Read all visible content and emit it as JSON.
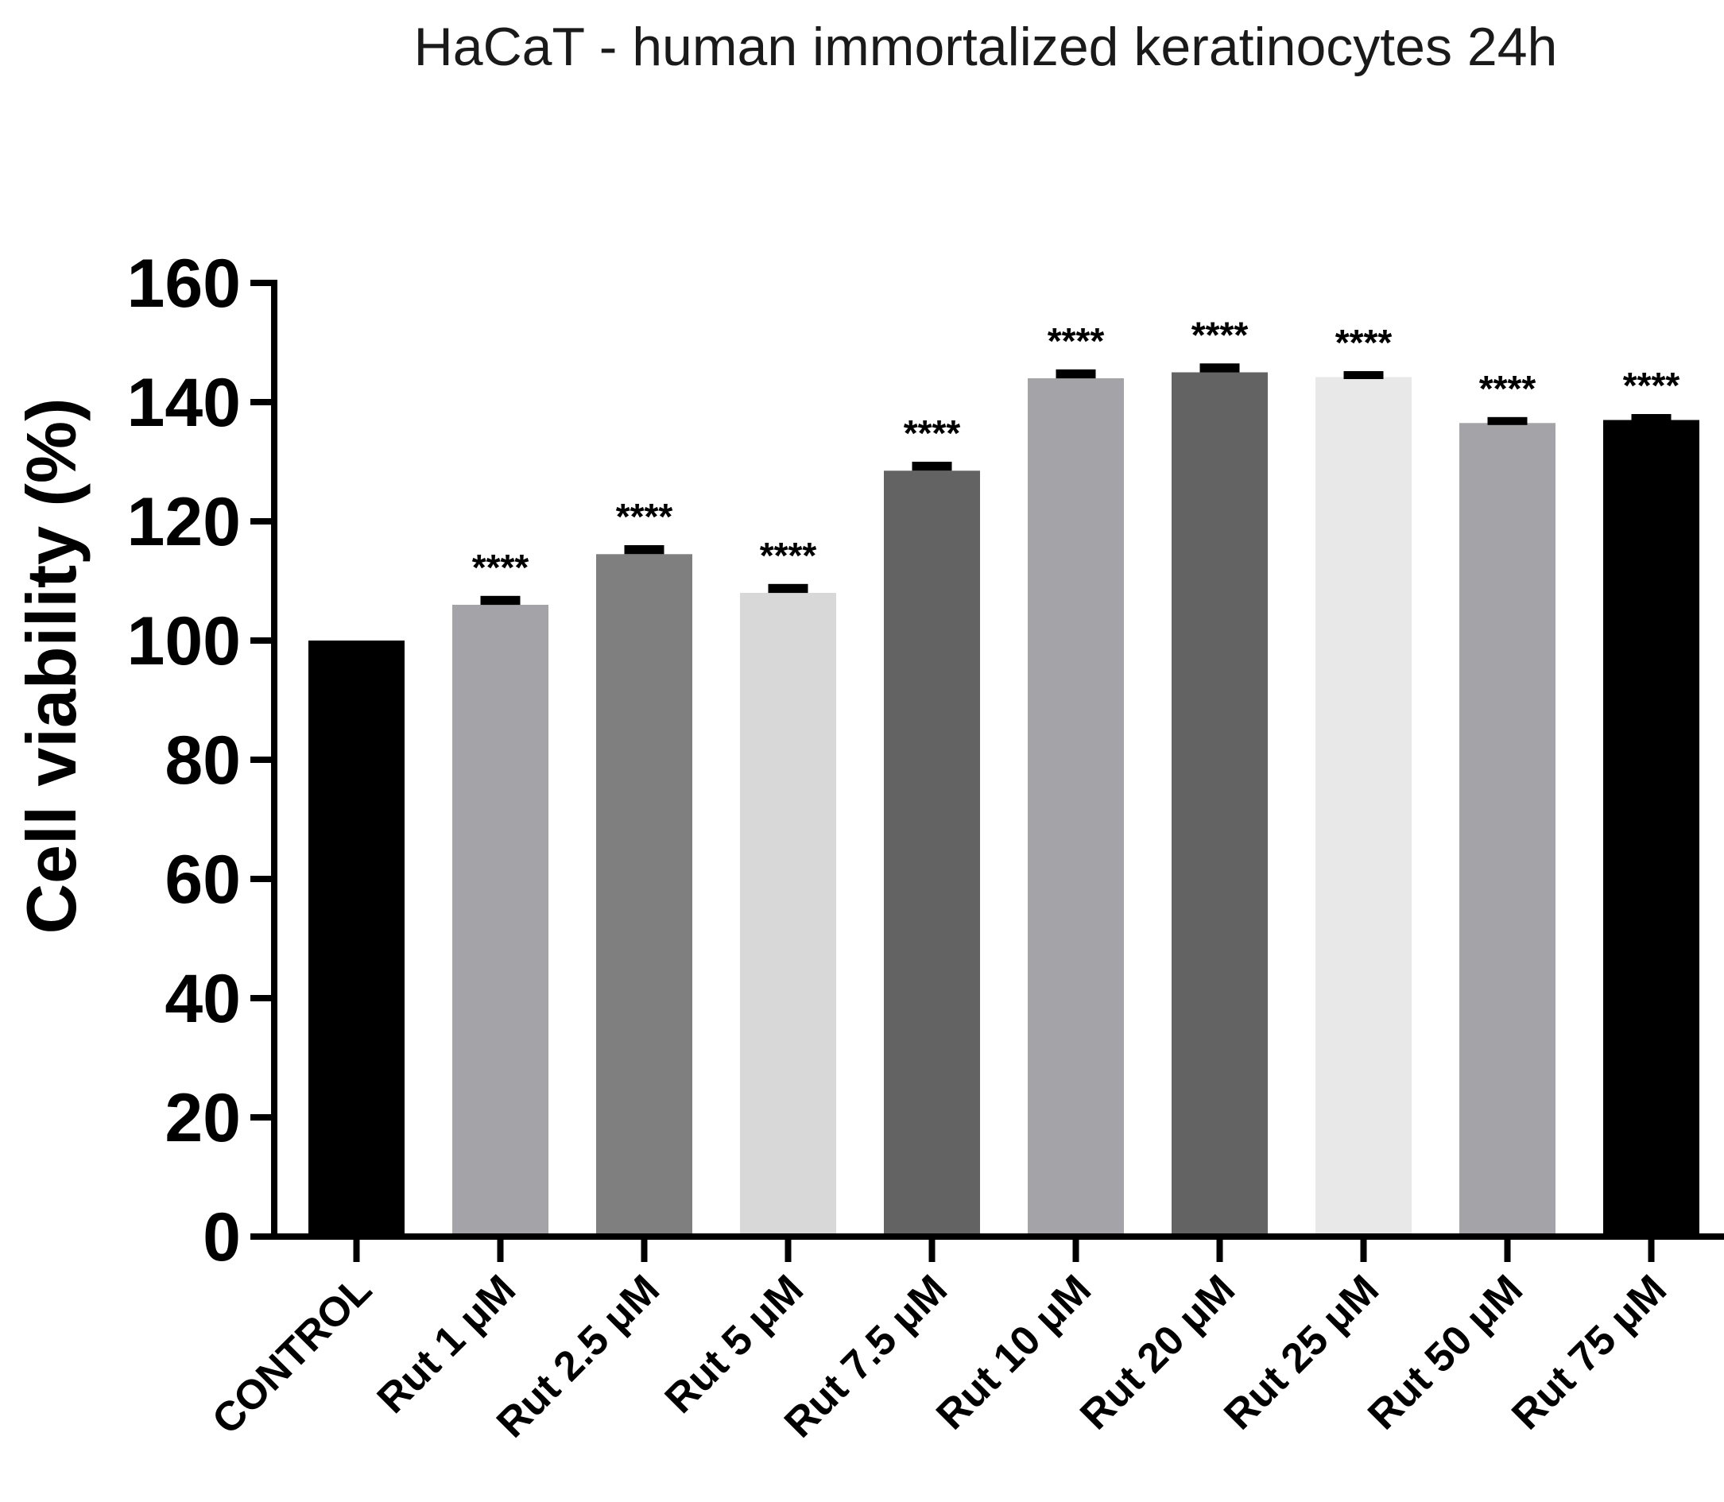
{
  "chart_data": {
    "type": "bar",
    "title": "HaCaT - human immortalized keratinocytes 24h",
    "xlabel": "",
    "ylabel": "Cell viability (%)",
    "ylim": [
      0,
      160
    ],
    "yticks": [
      0,
      20,
      40,
      60,
      80,
      100,
      120,
      140,
      160
    ],
    "grid": false,
    "categories": [
      "CONTROL",
      "Rut 1 μM",
      "Rut 2.5 μM",
      "Rut 5 μM",
      "Rut 7.5 μM",
      "Rut 10 μM",
      "Rut 20 μM",
      "Rut 25 μM",
      "Rut 50 μM",
      "Rut 75 μM"
    ],
    "values": [
      100,
      106,
      114.5,
      108,
      128.5,
      144,
      145,
      144.2,
      136.5,
      137
    ],
    "errors": [
      0,
      1.5,
      1.5,
      1.5,
      1.5,
      1.5,
      1.5,
      1,
      1,
      1
    ],
    "significance": [
      "",
      "****",
      "****",
      "****",
      "****",
      "****",
      "****",
      "****",
      "****",
      "****"
    ],
    "bar_colors": [
      "#000000",
      "#a4a3a8",
      "#7f7f7f",
      "#d8d8d8",
      "#636363",
      "#a4a3a8",
      "#636363",
      "#e8e8e8",
      "#a4a3a8",
      "#000000"
    ],
    "axis_color": "#000000"
  }
}
